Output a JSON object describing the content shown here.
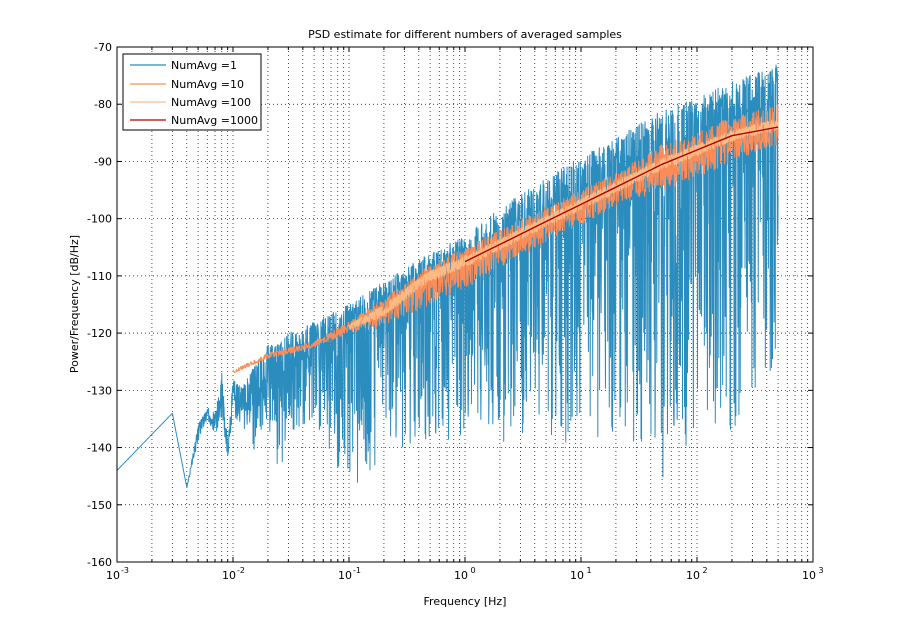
{
  "chart_data": {
    "type": "line",
    "title": "PSD estimate for different numbers of averaged samples",
    "xlabel": "Frequency [Hz]",
    "ylabel": "Power/Frequency [dB/Hz]",
    "xscale": "log",
    "xlim": [
      0.001,
      1000
    ],
    "ylim": [
      -160,
      -70
    ],
    "grid": "major-and-minor-dotted",
    "legend_position": "top-left",
    "x_ticks": [
      {
        "base": "10",
        "exp": "-3",
        "value": 0.001
      },
      {
        "base": "10",
        "exp": "-2",
        "value": 0.01
      },
      {
        "base": "10",
        "exp": "-1",
        "value": 0.1
      },
      {
        "base": "10",
        "exp": "0",
        "value": 1
      },
      {
        "base": "10",
        "exp": "1",
        "value": 10
      },
      {
        "base": "10",
        "exp": "2",
        "value": 100
      },
      {
        "base": "10",
        "exp": "3",
        "value": 1000
      }
    ],
    "y_ticks": [
      "-70",
      "-80",
      "-90",
      "-100",
      "-110",
      "-120",
      "-130",
      "-140",
      "-150",
      "-160"
    ],
    "series": [
      {
        "name": "NumAvg =1",
        "color": "#2b8cbe",
        "x": [
          0.001,
          0.003,
          0.004,
          0.005,
          0.006,
          0.007,
          0.008,
          0.009,
          0.01,
          0.012,
          0.015,
          0.02,
          0.025,
          0.03,
          0.05,
          0.1,
          0.2,
          0.5,
          1,
          2,
          5,
          10,
          20,
          50,
          100,
          200,
          500
        ],
        "center": [
          -144,
          -134,
          -147,
          -137,
          -134,
          -136,
          -131,
          -141,
          -131,
          -133,
          -130,
          -127,
          -126,
          -124,
          -123,
          -120,
          -116,
          -111,
          -108,
          -105,
          -100,
          -97,
          -94,
          -90,
          -87,
          -84,
          -81
        ],
        "upper": [
          -144,
          -134,
          -147,
          -136,
          -133,
          -134,
          -127,
          -139,
          -128,
          -129,
          -126,
          -122,
          -122,
          -120,
          -118,
          -115,
          -111,
          -106,
          -103,
          -98,
          -93,
          -89,
          -86,
          -81,
          -79,
          -76,
          -73
        ],
        "lower": [
          -144,
          -134,
          -147,
          -139,
          -135,
          -138,
          -135,
          -142,
          -134,
          -137,
          -141,
          -135,
          -148,
          -138,
          -135,
          -152,
          -140,
          -140,
          -138,
          -140,
          -138,
          -140,
          -139,
          -147,
          -139,
          -139,
          -124
        ]
      },
      {
        "name": "NumAvg =10",
        "color": "#fc8d59",
        "x": [
          0.01,
          0.02,
          0.05,
          0.1,
          0.2,
          0.5,
          1,
          2,
          5,
          10,
          20,
          50,
          100,
          200,
          500
        ],
        "center": [
          -127,
          -124,
          -122,
          -119,
          -116,
          -110,
          -108,
          -105,
          -101,
          -98,
          -95,
          -91,
          -89,
          -86,
          -84
        ],
        "upper": [
          -126.5,
          -123.5,
          -121.5,
          -118,
          -114,
          -108,
          -105,
          -102,
          -98,
          -95,
          -92,
          -87,
          -85,
          -82,
          -80
        ],
        "lower": [
          -127,
          -124.5,
          -122.5,
          -120,
          -119,
          -115,
          -112,
          -109,
          -104,
          -101,
          -98,
          -95,
          -93,
          -90,
          -87
        ]
      },
      {
        "name": "NumAvg =100",
        "color": "#fdbb84",
        "x": [
          0.1,
          0.2,
          0.5,
          1,
          2,
          5,
          10,
          20,
          50,
          100,
          200,
          500
        ],
        "center": [
          -119,
          -116,
          -110,
          -107.5,
          -104.5,
          -100.5,
          -97.5,
          -94.5,
          -90.5,
          -88,
          -85.5,
          -83.5
        ],
        "upper": [
          -118.5,
          -115,
          -109,
          -106.5,
          -103.5,
          -99.5,
          -96.5,
          -93.5,
          -89.5,
          -87,
          -84.5,
          -82.5
        ],
        "lower": [
          -119.5,
          -117,
          -111,
          -108.5,
          -105.5,
          -101.5,
          -98.5,
          -95.5,
          -91.5,
          -89,
          -86.5,
          -84.5
        ]
      },
      {
        "name": "NumAvg =1000",
        "color": "#b30000",
        "x": [
          1,
          2,
          5,
          10,
          20,
          50,
          100,
          200,
          500
        ],
        "center": [
          -107.5,
          -104.5,
          -100.5,
          -97.5,
          -94.5,
          -90.5,
          -88,
          -85.5,
          -84
        ]
      }
    ]
  }
}
